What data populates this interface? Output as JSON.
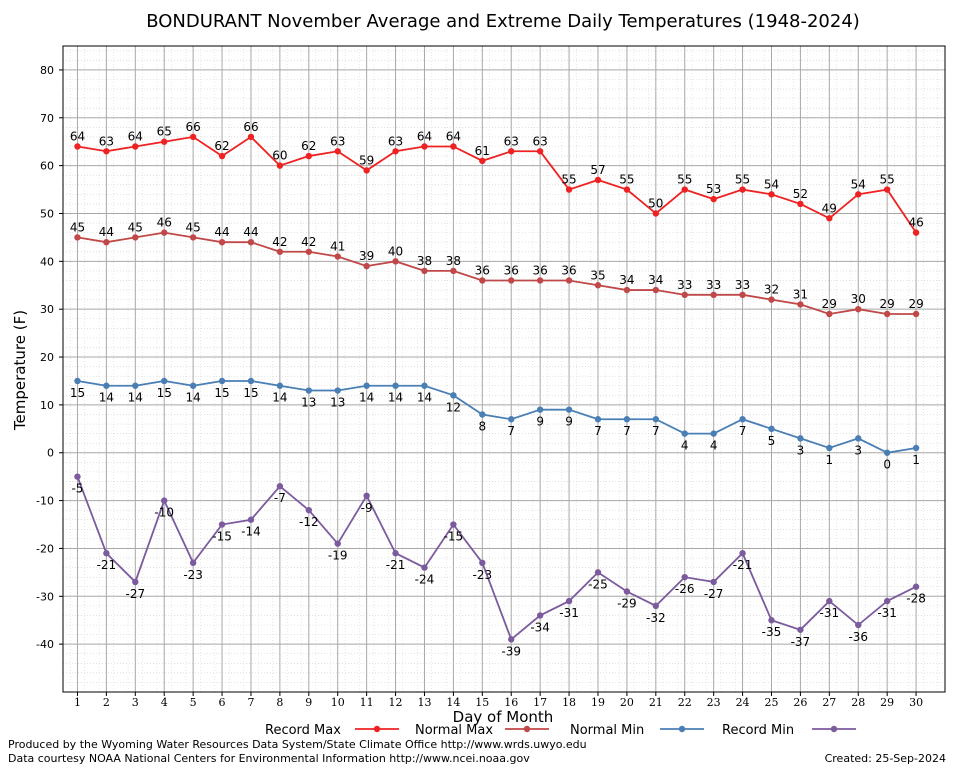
{
  "chart_data": {
    "type": "line",
    "title": "BONDURANT November Average and Extreme Daily Temperatures (1948-2024)",
    "xlabel": "Day of Month",
    "ylabel": "Temperature (F)",
    "x": [
      1,
      2,
      3,
      4,
      5,
      6,
      7,
      8,
      9,
      10,
      11,
      12,
      13,
      14,
      15,
      16,
      17,
      18,
      19,
      20,
      21,
      22,
      23,
      24,
      25,
      26,
      27,
      28,
      29,
      30
    ],
    "ylim": [
      -50,
      85
    ],
    "yticks": [
      -40,
      -30,
      -20,
      -10,
      0,
      10,
      20,
      30,
      40,
      50,
      60,
      70,
      80
    ],
    "grid": true,
    "legend": "bottom",
    "series": [
      {
        "name": "Record Max",
        "color": "#ee2222",
        "values": [
          64,
          63,
          64,
          65,
          66,
          62,
          66,
          60,
          62,
          63,
          59,
          63,
          64,
          64,
          61,
          63,
          63,
          55,
          57,
          55,
          50,
          55,
          53,
          55,
          54,
          52,
          49,
          54,
          55,
          46
        ]
      },
      {
        "name": "Normal Max",
        "color": "#c04848",
        "values": [
          45,
          44,
          45,
          46,
          45,
          44,
          44,
          42,
          42,
          41,
          39,
          40,
          38,
          38,
          36,
          36,
          36,
          36,
          35,
          34,
          34,
          33,
          33,
          33,
          32,
          31,
          29,
          30,
          29,
          29
        ]
      },
      {
        "name": "Normal Min",
        "color": "#4a7fb5",
        "values": [
          15,
          14,
          14,
          15,
          14,
          15,
          15,
          14,
          13,
          13,
          14,
          14,
          14,
          12,
          8,
          7,
          9,
          9,
          7,
          7,
          7,
          4,
          4,
          7,
          5,
          3,
          1,
          3,
          0,
          1
        ]
      },
      {
        "name": "Record Min",
        "color": "#7b5a9e",
        "values": [
          -5,
          -21,
          -27,
          -10,
          -23,
          -15,
          -14,
          -7,
          -12,
          -19,
          -9,
          -21,
          -24,
          -15,
          -23,
          -39,
          -34,
          -31,
          -25,
          -29,
          -32,
          -26,
          -27,
          -21,
          -35,
          -37,
          -31,
          -36,
          -31,
          -28
        ]
      }
    ]
  },
  "footer": {
    "line1": "Produced by the Wyoming Water Resources Data System/State Climate Office http://www.wrds.uwyo.edu",
    "line2": "Data courtesy NOAA National Centers for Environmental Information http://www.ncei.noaa.gov",
    "created": "Created:  25-Sep-2024"
  }
}
